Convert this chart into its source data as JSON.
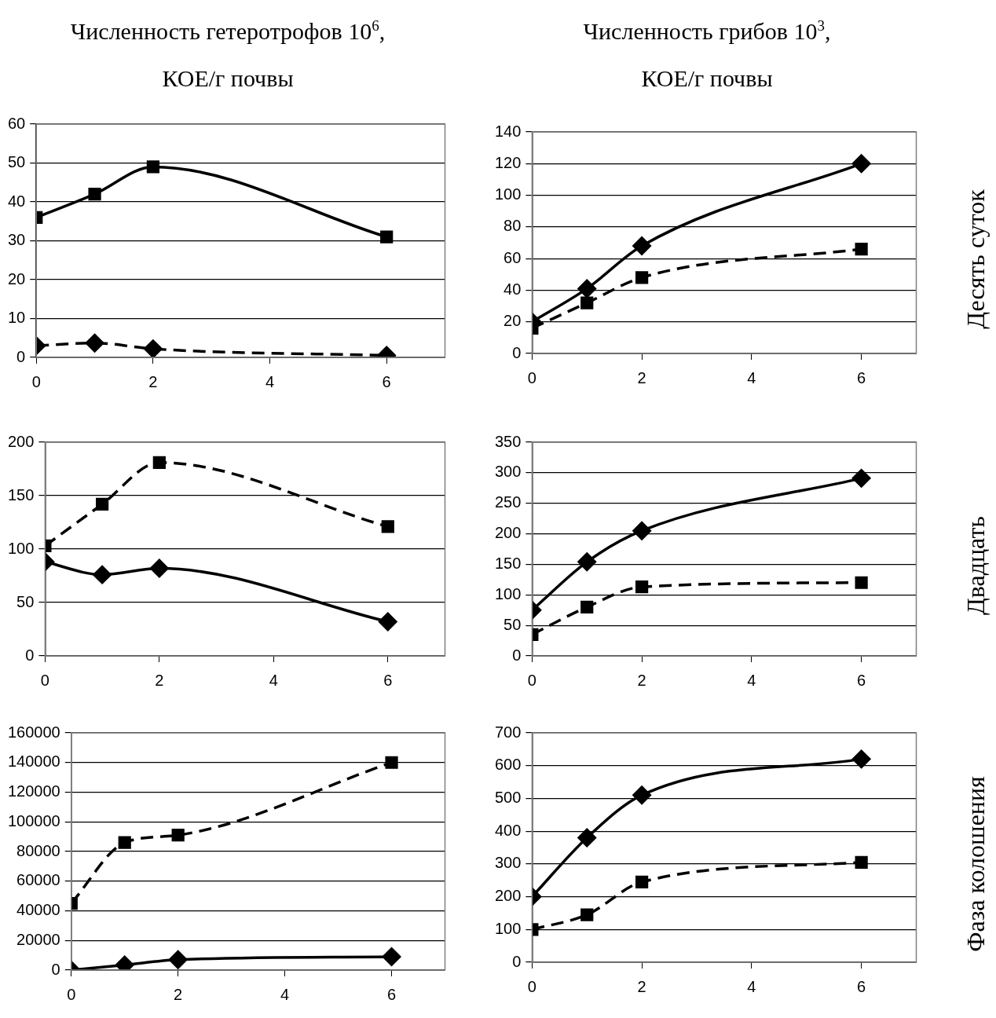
{
  "chart_data": [
    {
      "type": "line",
      "title": "Численность гетеротрофов 10$^{6}$,\nКОЕ/г почвы",
      "x": [
        0,
        1,
        2,
        6
      ],
      "xlim": [
        0,
        7
      ],
      "xticks": [
        0,
        2,
        4,
        6
      ],
      "ylim": [
        0,
        60
      ],
      "yticks": [
        0,
        10,
        20,
        30,
        40,
        50,
        60
      ],
      "grid": "y",
      "legend": false,
      "series": [
        {
          "color": "#000000",
          "marker": "square",
          "line_style": "solid",
          "values": [
            36,
            42,
            49,
            31
          ]
        },
        {
          "color": "#000000",
          "marker": "diamond",
          "line_style": "dashed",
          "values": [
            3,
            3.7,
            2.2,
            0.5
          ]
        }
      ]
    },
    {
      "type": "line",
      "title": "Численность грибов 10$^{3}$,\nКОЕ/г почвы",
      "y2label": "Десять суток",
      "x": [
        0,
        1,
        2,
        6
      ],
      "xlim": [
        0,
        7
      ],
      "xticks": [
        0,
        2,
        4,
        6
      ],
      "ylim": [
        0,
        140
      ],
      "yticks": [
        0,
        20,
        40,
        60,
        80,
        100,
        120,
        140
      ],
      "grid": "y",
      "legend": false,
      "series": [
        {
          "color": "#000000",
          "marker": "diamond",
          "line_style": "solid",
          "values": [
            20,
            41,
            68,
            120
          ]
        },
        {
          "color": "#000000",
          "marker": "square",
          "line_style": "dashed",
          "values": [
            16,
            32,
            48,
            66
          ]
        }
      ]
    },
    {
      "type": "line",
      "x": [
        0,
        1,
        2,
        6
      ],
      "xlim": [
        0,
        7
      ],
      "xticks": [
        0,
        2,
        4,
        6
      ],
      "ylim": [
        0,
        200
      ],
      "yticks": [
        0,
        50,
        100,
        150,
        200
      ],
      "grid": "y",
      "legend": false,
      "series": [
        {
          "color": "#000000",
          "marker": "square",
          "line_style": "dashed",
          "values": [
            103,
            142,
            181,
            121
          ]
        },
        {
          "color": "#000000",
          "marker": "diamond",
          "line_style": "solid",
          "values": [
            88,
            76,
            82,
            32
          ]
        }
      ]
    },
    {
      "type": "line",
      "y2label": "Двадцать",
      "x": [
        0,
        1,
        2,
        6
      ],
      "xlim": [
        0,
        7
      ],
      "xticks": [
        0,
        2,
        4,
        6
      ],
      "ylim": [
        0,
        350
      ],
      "yticks": [
        0,
        50,
        100,
        150,
        200,
        250,
        300,
        350
      ],
      "grid": "y",
      "legend": false,
      "series": [
        {
          "color": "#000000",
          "marker": "diamond",
          "line_style": "solid",
          "values": [
            75,
            154,
            205,
            291
          ]
        },
        {
          "color": "#000000",
          "marker": "square",
          "line_style": "dashed",
          "values": [
            35,
            80,
            113,
            120
          ]
        }
      ]
    },
    {
      "type": "line",
      "x": [
        0,
        1,
        2,
        6
      ],
      "xlim": [
        0,
        7
      ],
      "xticks": [
        0,
        2,
        4,
        6
      ],
      "ylim": [
        0,
        160000
      ],
      "yticks": [
        0,
        20000,
        40000,
        60000,
        80000,
        100000,
        120000,
        140000,
        160000
      ],
      "grid": "y",
      "legend": false,
      "series": [
        {
          "color": "#000000",
          "marker": "square",
          "line_style": "dashed",
          "values": [
            45000,
            86000,
            91000,
            140000
          ]
        },
        {
          "color": "#000000",
          "marker": "diamond",
          "line_style": "solid",
          "values": [
            0,
            3500,
            7000,
            9000
          ]
        }
      ]
    },
    {
      "type": "line",
      "y2label": "Фаза колошения",
      "x": [
        0,
        1,
        2,
        6
      ],
      "xlim": [
        0,
        7
      ],
      "xticks": [
        0,
        2,
        4,
        6
      ],
      "ylim": [
        0,
        700
      ],
      "yticks": [
        0,
        100,
        200,
        300,
        400,
        500,
        600,
        700
      ],
      "grid": "y",
      "legend": false,
      "series": [
        {
          "color": "#000000",
          "marker": "diamond",
          "line_style": "solid",
          "values": [
            200,
            380,
            510,
            620
          ]
        },
        {
          "color": "#000000",
          "marker": "square",
          "line_style": "dashed",
          "values": [
            100,
            145,
            245,
            305
          ]
        }
      ]
    }
  ]
}
